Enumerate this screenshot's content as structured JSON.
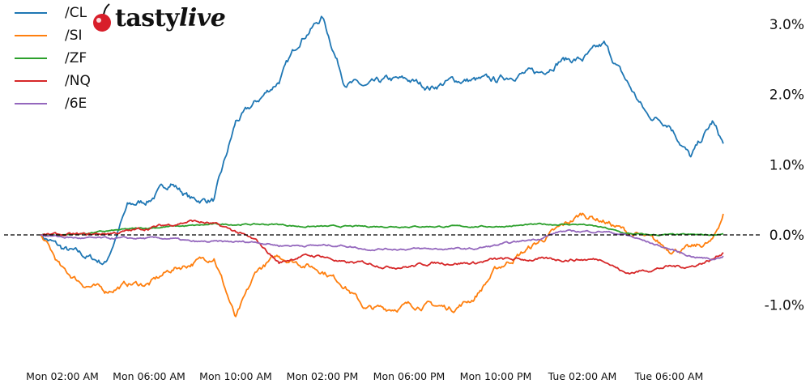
{
  "logo": {
    "text_main": "tasty",
    "text_accent": "live",
    "cherry_color": "#d81e2a"
  },
  "chart_data": {
    "type": "line",
    "title": "",
    "xlabel": "",
    "ylabel": "",
    "ylim": [
      -1.8,
      3.3
    ],
    "y_ticks": [
      {
        "value": 3.0,
        "label": "3.0%"
      },
      {
        "value": 2.0,
        "label": "2.0%"
      },
      {
        "value": 1.0,
        "label": "1.0%"
      },
      {
        "value": 0.0,
        "label": "0.0%"
      },
      {
        "value": -1.0,
        "label": "-1.0%"
      }
    ],
    "x_ticks": [
      "Mon 02:00 AM",
      "Mon 06:00 AM",
      "Mon 10:00 AM",
      "Mon 02:00 PM",
      "Mon 06:00 PM",
      "Mon 10:00 PM",
      "Tue 02:00 AM",
      "Tue 06:00 AM"
    ],
    "zero_line": "dashed",
    "grid": false,
    "legend": "top-left",
    "x": [
      "Mon 01:00 AM",
      "Mon 02:00 AM",
      "Mon 03:00 AM",
      "Mon 04:00 AM",
      "Mon 05:00 AM",
      "Mon 06:00 AM",
      "Mon 07:00 AM",
      "Mon 08:00 AM",
      "Mon 09:00 AM",
      "Mon 10:00 AM",
      "Mon 11:00 AM",
      "Mon 12:00 PM",
      "Mon 01:00 PM",
      "Mon 02:00 PM",
      "Mon 03:00 PM",
      "Mon 04:00 PM",
      "Mon 05:00 PM",
      "Mon 06:00 PM",
      "Mon 07:00 PM",
      "Mon 08:00 PM",
      "Mon 09:00 PM",
      "Mon 10:00 PM",
      "Mon 11:00 PM",
      "Tue 12:00 AM",
      "Tue 01:00 AM",
      "Tue 02:00 AM",
      "Tue 03:00 AM",
      "Tue 04:00 AM",
      "Tue 05:00 AM",
      "Tue 06:00 AM",
      "Tue 07:00 AM",
      "Tue 08:00 AM",
      "Tue 08:30 AM"
    ],
    "series": [
      {
        "name": "/CL",
        "color": "#1f77b4",
        "values": [
          0.0,
          -0.2,
          -0.3,
          -0.4,
          0.4,
          0.5,
          0.75,
          0.5,
          0.5,
          1.6,
          1.9,
          2.2,
          2.8,
          3.1,
          2.2,
          2.1,
          2.2,
          2.2,
          2.1,
          2.2,
          2.2,
          2.2,
          2.3,
          2.3,
          2.5,
          2.5,
          2.7,
          2.2,
          1.7,
          1.6,
          1.1,
          1.6,
          1.3
        ]
      },
      {
        "name": "/SI",
        "color": "#ff7f0e",
        "values": [
          0.0,
          -0.5,
          -0.7,
          -0.8,
          -0.7,
          -0.7,
          -0.5,
          -0.4,
          -0.3,
          -1.2,
          -0.5,
          -0.3,
          -0.4,
          -0.5,
          -0.7,
          -1.05,
          -1.05,
          -1.0,
          -1.0,
          -1.05,
          -0.9,
          -0.5,
          -0.3,
          -0.1,
          0.1,
          0.3,
          0.2,
          0.05,
          -0.05,
          -0.2,
          -0.2,
          -0.1,
          0.3
        ]
      },
      {
        "name": "/ZF",
        "color": "#2ca02c",
        "values": [
          0,
          0,
          0.02,
          0.05,
          0.08,
          0.1,
          0.12,
          0.13,
          0.15,
          0.15,
          0.15,
          0.15,
          0.12,
          0.12,
          0.12,
          0.12,
          0.12,
          0.12,
          0.12,
          0.12,
          0.12,
          0.12,
          0.13,
          0.15,
          0.15,
          0.15,
          0.1,
          0.02,
          0,
          0,
          0,
          0,
          0.02
        ]
      },
      {
        "name": "/NQ",
        "color": "#d62728",
        "values": [
          0,
          0,
          0,
          0.02,
          0.05,
          0.1,
          0.15,
          0.2,
          0.15,
          0.05,
          -0.1,
          -0.4,
          -0.3,
          -0.3,
          -0.4,
          -0.4,
          -0.45,
          -0.45,
          -0.4,
          -0.4,
          -0.4,
          -0.35,
          -0.35,
          -0.35,
          -0.35,
          -0.35,
          -0.35,
          -0.55,
          -0.5,
          -0.45,
          -0.45,
          -0.35,
          -0.25
        ]
      },
      {
        "name": "/6E",
        "color": "#9467bd",
        "values": [
          0,
          -0.03,
          -0.05,
          -0.05,
          -0.05,
          -0.05,
          -0.05,
          -0.1,
          -0.1,
          -0.1,
          -0.1,
          -0.15,
          -0.15,
          -0.15,
          -0.15,
          -0.2,
          -0.2,
          -0.2,
          -0.2,
          -0.2,
          -0.2,
          -0.15,
          -0.1,
          -0.05,
          0.05,
          0.05,
          0.05,
          0,
          -0.1,
          -0.2,
          -0.3,
          -0.35,
          -0.3
        ]
      }
    ]
  }
}
